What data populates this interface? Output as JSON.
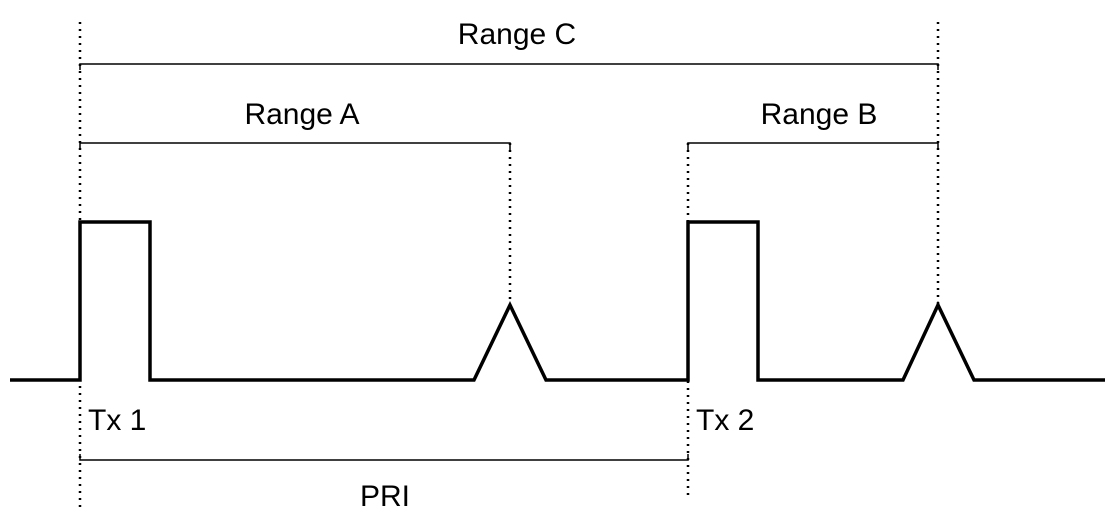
{
  "labels": {
    "range_c": "Range C",
    "range_a": "Range A",
    "range_b": "Range B",
    "tx1": "Tx 1",
    "tx2": "Tx 2",
    "pri": "PRI"
  }
}
